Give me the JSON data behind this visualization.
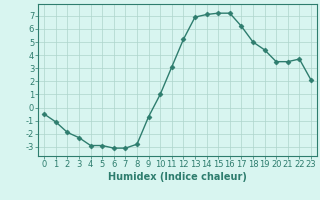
{
  "x": [
    0,
    1,
    2,
    3,
    4,
    5,
    6,
    7,
    8,
    9,
    10,
    11,
    12,
    13,
    14,
    15,
    16,
    17,
    18,
    19,
    20,
    21,
    22,
    23
  ],
  "y": [
    -0.5,
    -1.1,
    -1.9,
    -2.3,
    -2.9,
    -2.9,
    -3.1,
    -3.1,
    -2.8,
    -0.7,
    1.0,
    3.1,
    5.2,
    6.9,
    7.1,
    7.2,
    7.2,
    6.2,
    5.0,
    4.4,
    3.5,
    3.5,
    3.7,
    2.1
  ],
  "line_color": "#2e7d6e",
  "marker": "D",
  "marker_size": 2.5,
  "background_color": "#d8f5f0",
  "grid_color": "#aed4cc",
  "xlabel": "Humidex (Indice chaleur)",
  "xlim": [
    -0.5,
    23.5
  ],
  "ylim": [
    -3.7,
    7.9
  ],
  "yticks": [
    -3,
    -2,
    -1,
    0,
    1,
    2,
    3,
    4,
    5,
    6,
    7
  ],
  "xticks": [
    0,
    1,
    2,
    3,
    4,
    5,
    6,
    7,
    8,
    9,
    10,
    11,
    12,
    13,
    14,
    15,
    16,
    17,
    18,
    19,
    20,
    21,
    22,
    23
  ],
  "tick_color": "#2e7d6e",
  "label_color": "#2e7d6e",
  "spine_color": "#2e7d6e",
  "xlabel_fontsize": 7,
  "tick_fontsize": 6,
  "linewidth": 1.0
}
